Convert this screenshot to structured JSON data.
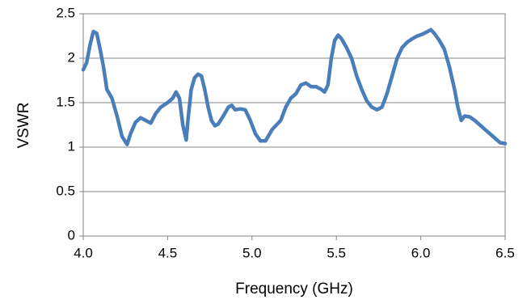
{
  "chart_data": {
    "type": "line",
    "x_label": "Frequency (GHz)",
    "y_label": "VSWR",
    "xlim": [
      4,
      6.5
    ],
    "xticks": [
      {
        "value": 4,
        "label": "4.0"
      },
      4.5,
      {
        "value": 5,
        "label": "5.0"
      },
      5.5,
      {
        "value": 6,
        "label": "6.0"
      },
      6.5
    ],
    "ylim": [
      0,
      2.5
    ],
    "yticks": [
      0,
      0.5,
      1,
      1.5,
      2,
      2.5
    ],
    "grid": true,
    "x": [
      4.0,
      4.02,
      4.04,
      4.06,
      4.08,
      4.1,
      4.12,
      4.14,
      4.17,
      4.2,
      4.23,
      4.26,
      4.28,
      4.31,
      4.34,
      4.37,
      4.4,
      4.43,
      4.46,
      4.5,
      4.53,
      4.55,
      4.57,
      4.59,
      4.61,
      4.62,
      4.64,
      4.66,
      4.68,
      4.7,
      4.72,
      4.74,
      4.76,
      4.78,
      4.8,
      4.83,
      4.86,
      4.88,
      4.9,
      4.93,
      4.96,
      4.99,
      5.02,
      5.05,
      5.08,
      5.12,
      5.17,
      5.2,
      5.23,
      5.26,
      5.29,
      5.32,
      5.35,
      5.38,
      5.41,
      5.43,
      5.45,
      5.47,
      5.49,
      5.51,
      5.53,
      5.56,
      5.59,
      5.62,
      5.65,
      5.68,
      5.71,
      5.74,
      5.77,
      5.8,
      5.83,
      5.86,
      5.89,
      5.92,
      5.95,
      5.98,
      6.01,
      6.04,
      6.06,
      6.08,
      6.11,
      6.14,
      6.17,
      6.2,
      6.22,
      6.24,
      6.26,
      6.29,
      6.32,
      6.35,
      6.38,
      6.41,
      6.44,
      6.47,
      6.5
    ],
    "series": [
      {
        "color": "#4a7ebb",
        "values": [
          1.87,
          1.95,
          2.15,
          2.3,
          2.28,
          2.1,
          1.9,
          1.65,
          1.55,
          1.35,
          1.12,
          1.03,
          1.15,
          1.28,
          1.33,
          1.3,
          1.27,
          1.38,
          1.45,
          1.5,
          1.55,
          1.62,
          1.55,
          1.25,
          1.08,
          1.3,
          1.65,
          1.78,
          1.82,
          1.8,
          1.65,
          1.45,
          1.3,
          1.24,
          1.26,
          1.35,
          1.45,
          1.47,
          1.42,
          1.43,
          1.42,
          1.3,
          1.15,
          1.07,
          1.07,
          1.2,
          1.3,
          1.45,
          1.55,
          1.6,
          1.7,
          1.72,
          1.68,
          1.68,
          1.65,
          1.62,
          1.7,
          2.0,
          2.2,
          2.26,
          2.22,
          2.12,
          2.0,
          1.8,
          1.65,
          1.52,
          1.45,
          1.42,
          1.45,
          1.6,
          1.8,
          2.0,
          2.12,
          2.18,
          2.22,
          2.25,
          2.27,
          2.3,
          2.32,
          2.28,
          2.2,
          2.1,
          1.9,
          1.65,
          1.45,
          1.3,
          1.35,
          1.34,
          1.3,
          1.25,
          1.2,
          1.15,
          1.1,
          1.05,
          1.04
        ]
      }
    ]
  }
}
